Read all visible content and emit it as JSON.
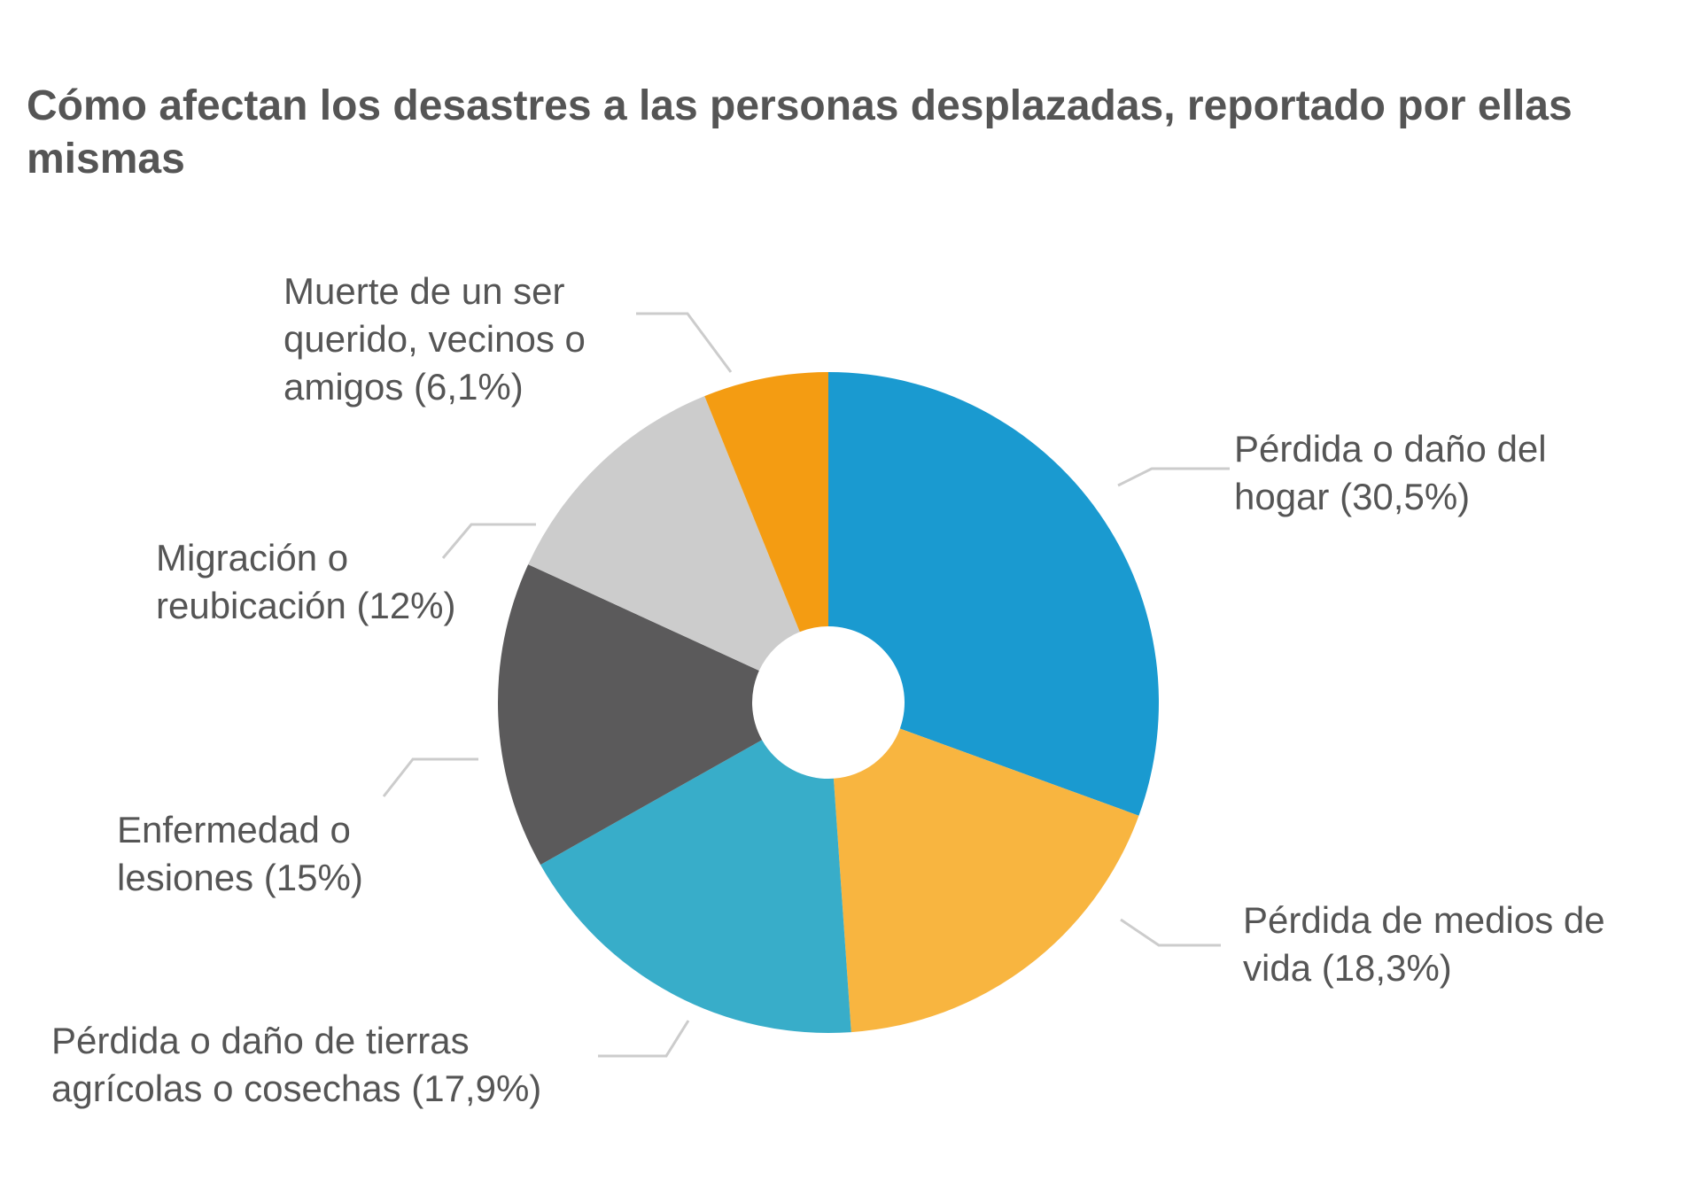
{
  "title": "Cómo afectan los desastres a las personas desplazadas, reportado por ellas mismas",
  "chart_data": {
    "type": "pie",
    "variant": "donut",
    "title": "Cómo afectan los desastres a las personas desplazadas, reportado por ellas mismas",
    "slices": [
      {
        "name": "Pérdida o daño del hogar",
        "value": 30.5,
        "label_lines": [
          "Pérdida o daño del",
          "hogar (30,5%)"
        ],
        "color": "#1a9ad0"
      },
      {
        "name": "Pérdida de medios de vida",
        "value": 18.3,
        "label_lines": [
          "Pérdida de medios de",
          "vida (18,3%)"
        ],
        "color": "#f8b540"
      },
      {
        "name": "Pérdida o daño de tierras agrícolas o cosechas",
        "value": 17.9,
        "label_lines": [
          "Pérdida o daño de tierras",
          "agrícolas o cosechas (17,9%)"
        ],
        "color": "#38adc9"
      },
      {
        "name": "Enfermedad o lesiones",
        "value": 15,
        "label_lines": [
          "Enfermedad o",
          "lesiones (15%)"
        ],
        "color": "#5b5a5b"
      },
      {
        "name": "Migración o reubicación",
        "value": 12,
        "label_lines": [
          "Migración o",
          "reubicación (12%)"
        ],
        "color": "#cccccc"
      },
      {
        "name": "Muerte de un ser querido, vecinos o amigos",
        "value": 6.1,
        "label_lines": [
          "Muerte de un ser",
          "querido, vecinos o",
          "amigos (6,1%)"
        ],
        "color": "#f49c12"
      }
    ],
    "legend": "none",
    "leader_line_color": "#cccccc"
  }
}
